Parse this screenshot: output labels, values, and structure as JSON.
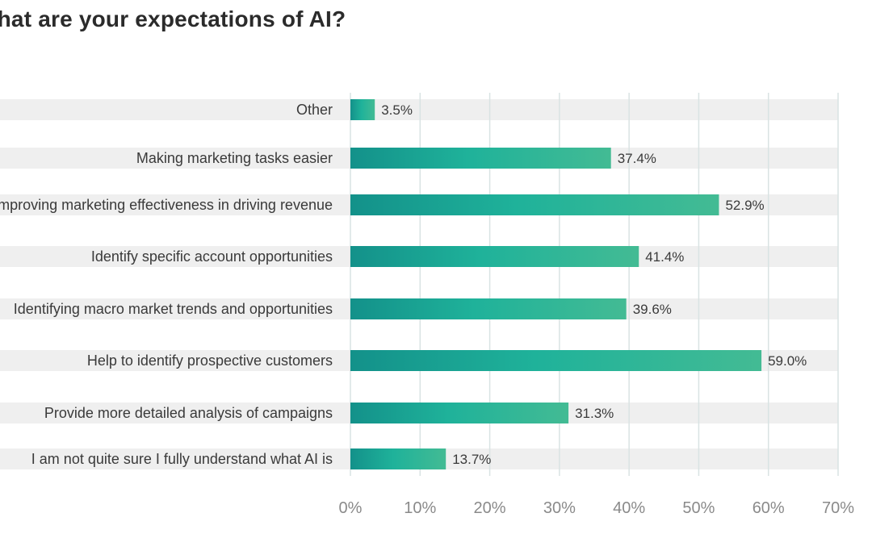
{
  "chart_data": {
    "type": "bar",
    "orientation": "horizontal",
    "title": "What are your expectations of AI?",
    "categories": [
      "Other",
      "Making marketing tasks easier",
      "Improving marketing effectiveness in driving revenue",
      "Identify specific account opportunities",
      "Identifying macro market trends and opportunities",
      "Help to identify prospective customers",
      "Provide more detailed analysis of campaigns",
      "I am not quite sure I fully understand what AI is"
    ],
    "values": [
      3.5,
      37.4,
      52.9,
      41.4,
      39.6,
      59.0,
      31.3,
      13.7
    ],
    "value_labels": [
      "3.5%",
      "37.4%",
      "52.9%",
      "41.4%",
      "39.6%",
      "59.0%",
      "31.3%",
      "13.7%"
    ],
    "xlim": [
      0,
      70
    ],
    "xticks": [
      "0%",
      "10%",
      "20%",
      "30%",
      "40%",
      "50%",
      "60%",
      "70%"
    ],
    "grid": true,
    "xlabel": "",
    "ylabel": "",
    "colors": {
      "bar_start": "#13918a",
      "bar_mid": "#1fb29a",
      "bar_end": "#43bb94",
      "row_band": "#efefef",
      "grid": "#d9e3e3"
    }
  }
}
